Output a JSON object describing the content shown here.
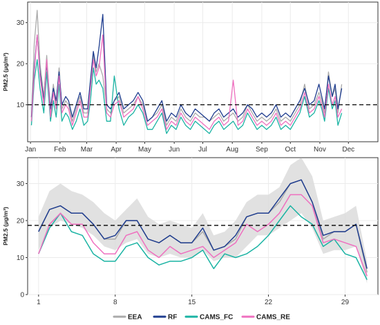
{
  "colors": {
    "EEA": "#aaaaaa",
    "RF": "#1f3d8f",
    "CAMS_FC": "#1ab3a3",
    "CAMS_RE": "#ef6fbf",
    "band": "#dcdcdc",
    "threshold": "#000000"
  },
  "legend": {
    "items": [
      {
        "key": "EEA",
        "label": "EEA"
      },
      {
        "key": "RF",
        "label": "RF"
      },
      {
        "key": "CAMS_FC",
        "label": "CAMS_FC"
      },
      {
        "key": "CAMS_RE",
        "label": "CAMS_RE"
      }
    ]
  },
  "chart_data": [
    {
      "type": "line",
      "ylabel": "PM2.5 (μg/m³)",
      "xlabel": "",
      "title": "",
      "x_unit": "day of year",
      "xlim": [
        -3,
        365
      ],
      "ylim": [
        1,
        35
      ],
      "yticks": [
        10,
        20,
        30
      ],
      "month_ticks": [
        {
          "label": "Jan",
          "day": 0
        },
        {
          "label": "Feb",
          "day": 31
        },
        {
          "label": "Mar",
          "day": 59
        },
        {
          "label": "Apr",
          "day": 90
        },
        {
          "label": "May",
          "day": 120
        },
        {
          "label": "Jun",
          "day": 151
        },
        {
          "label": "Jul",
          "day": 181
        },
        {
          "label": "Aug",
          "day": 212
        },
        {
          "label": "Sep",
          "day": 243
        },
        {
          "label": "Oct",
          "day": 273
        },
        {
          "label": "Nov",
          "day": 304
        },
        {
          "label": "Dec",
          "day": 334
        }
      ],
      "threshold": 10,
      "threshold_style": "dashed",
      "grid": true,
      "legend": "bottom",
      "series": [
        {
          "key": "EEA",
          "x": [
            1,
            4,
            7,
            10,
            14,
            17,
            21,
            24,
            27,
            30,
            33,
            37,
            40,
            44,
            48,
            52,
            56,
            60,
            63,
            66,
            69,
            72,
            76,
            80,
            84,
            88,
            93,
            98,
            103,
            108,
            113,
            118,
            123,
            128,
            133,
            138,
            143,
            148,
            153,
            158,
            163,
            168,
            173,
            178,
            183,
            188,
            193,
            198,
            203,
            208,
            213,
            218,
            223,
            228,
            233,
            238,
            243,
            248,
            253,
            258,
            263,
            268,
            273,
            278,
            283,
            288,
            293,
            298,
            303,
            306,
            309,
            313,
            317,
            320,
            323,
            327
          ],
          "y": [
            7,
            25,
            33,
            20,
            12,
            22,
            8,
            15,
            10,
            19,
            9,
            11,
            10,
            6,
            9,
            12,
            8,
            8,
            15,
            22,
            18,
            20,
            17,
            9,
            8,
            11,
            12,
            8,
            9,
            10,
            12,
            10,
            6,
            7,
            8,
            10,
            5,
            7,
            6,
            9,
            7,
            6,
            8,
            7,
            7,
            6,
            7,
            8,
            6,
            7,
            8,
            6,
            7,
            10,
            8,
            6,
            7,
            6,
            7,
            9,
            6,
            7,
            6,
            8,
            10,
            15,
            9,
            10,
            13,
            11,
            8,
            18,
            12,
            14,
            8,
            15
          ]
        },
        {
          "key": "RF",
          "x": [
            1,
            4,
            7,
            10,
            14,
            17,
            21,
            24,
            27,
            30,
            33,
            37,
            40,
            44,
            48,
            52,
            56,
            60,
            63,
            66,
            69,
            72,
            76,
            80,
            84,
            88,
            93,
            98,
            103,
            108,
            113,
            118,
            123,
            128,
            133,
            138,
            143,
            148,
            153,
            158,
            163,
            168,
            173,
            178,
            183,
            188,
            193,
            198,
            203,
            208,
            213,
            218,
            223,
            228,
            233,
            238,
            243,
            248,
            253,
            258,
            263,
            268,
            273,
            278,
            283,
            288,
            293,
            298,
            303,
            306,
            309,
            313,
            317,
            320,
            323,
            327
          ],
          "y": [
            7,
            19,
            27,
            18,
            11,
            20,
            9,
            14,
            11,
            18,
            10,
            12,
            11,
            7,
            10,
            13,
            9,
            9,
            16,
            23,
            19,
            24,
            32,
            10,
            9,
            11,
            13,
            9,
            10,
            11,
            13,
            11,
            6,
            7,
            9,
            11,
            6,
            8,
            7,
            10,
            8,
            7,
            9,
            8,
            7,
            6,
            8,
            9,
            7,
            8,
            9,
            7,
            8,
            10,
            9,
            7,
            8,
            7,
            8,
            10,
            7,
            8,
            7,
            9,
            11,
            14,
            10,
            11,
            15,
            12,
            9,
            17,
            12,
            15,
            9,
            14
          ]
        },
        {
          "key": "CAMS_FC",
          "x": [
            1,
            4,
            7,
            10,
            14,
            17,
            21,
            24,
            27,
            30,
            33,
            37,
            40,
            44,
            48,
            52,
            56,
            60,
            63,
            66,
            69,
            72,
            76,
            80,
            84,
            88,
            93,
            98,
            103,
            108,
            113,
            118,
            123,
            128,
            133,
            138,
            143,
            148,
            153,
            158,
            163,
            168,
            173,
            178,
            183,
            188,
            193,
            198,
            203,
            208,
            213,
            218,
            223,
            228,
            233,
            238,
            243,
            248,
            253,
            258,
            263,
            268,
            273,
            278,
            283,
            288,
            293,
            298,
            303,
            306,
            309,
            313,
            317,
            320,
            323,
            327
          ],
          "y": [
            5,
            16,
            21,
            14,
            8,
            18,
            6,
            11,
            7,
            15,
            6,
            8,
            7,
            4,
            6,
            9,
            5,
            6,
            11,
            19,
            15,
            16,
            14,
            6,
            6,
            17,
            9,
            5,
            7,
            8,
            10,
            8,
            4,
            4,
            6,
            8,
            3,
            5,
            4,
            7,
            5,
            4,
            6,
            5,
            4,
            3,
            5,
            6,
            4,
            5,
            6,
            4,
            5,
            8,
            6,
            4,
            5,
            4,
            5,
            7,
            4,
            5,
            4,
            6,
            8,
            12,
            7,
            8,
            11,
            9,
            6,
            14,
            9,
            11,
            5,
            8
          ]
        },
        {
          "key": "CAMS_RE",
          "x": [
            1,
            4,
            7,
            10,
            14,
            17,
            21,
            24,
            27,
            30,
            33,
            37,
            40,
            44,
            48,
            52,
            56,
            60,
            63,
            66,
            69,
            72,
            76,
            80,
            84,
            88,
            93,
            98,
            103,
            108,
            113,
            118,
            123,
            128,
            133,
            138,
            143,
            148,
            153,
            158,
            163,
            168,
            173,
            178,
            183,
            188,
            193,
            198,
            203,
            208,
            213,
            218,
            223,
            228,
            233,
            238,
            243,
            248,
            253,
            258,
            263,
            268,
            273,
            278,
            283,
            288,
            293,
            298,
            303,
            306,
            309,
            313,
            317,
            320,
            323,
            327
          ],
          "y": [
            6,
            18,
            27,
            17,
            10,
            21,
            7,
            13,
            9,
            17,
            8,
            10,
            9,
            5,
            8,
            11,
            7,
            7,
            14,
            21,
            17,
            19,
            27,
            8,
            7,
            10,
            11,
            7,
            8,
            9,
            12,
            9,
            5,
            6,
            7,
            9,
            4,
            6,
            5,
            8,
            6,
            5,
            7,
            6,
            5,
            4,
            6,
            7,
            5,
            6,
            16,
            5,
            6,
            9,
            7,
            5,
            6,
            5,
            6,
            8,
            5,
            6,
            5,
            7,
            9,
            13,
            8,
            9,
            12,
            10,
            7,
            15,
            10,
            12,
            7,
            9
          ]
        }
      ]
    },
    {
      "type": "line",
      "ylabel": "PM2.5 (μg/m³)",
      "xlabel": "",
      "title": "",
      "xlim": [
        0,
        32
      ],
      "ylim": [
        0,
        37
      ],
      "xticks": [
        1,
        8,
        15,
        22,
        29
      ],
      "yticks": [
        0,
        10,
        20,
        30
      ],
      "threshold": 18.7,
      "threshold_style": "dashed",
      "grid": true,
      "legend": "bottom",
      "x": [
        1,
        2,
        3,
        4,
        5,
        6,
        7,
        8,
        9,
        10,
        11,
        12,
        13,
        14,
        15,
        16,
        17,
        18,
        19,
        20,
        21,
        22,
        23,
        24,
        25,
        26,
        27,
        28,
        29,
        30,
        31
      ],
      "band": {
        "key": "EEA",
        "lower": [
          12,
          18,
          20,
          19,
          18,
          16,
          13,
          12,
          14,
          15,
          11,
          10,
          11,
          10,
          10,
          12,
          9,
          10,
          10,
          13,
          16,
          16,
          18,
          20,
          22,
          18,
          11,
          12,
          12,
          13,
          3
        ],
        "upper": [
          21,
          28,
          30,
          28,
          27,
          25,
          22,
          20,
          23,
          26,
          21,
          19,
          20,
          19,
          18,
          22,
          16,
          17,
          20,
          25,
          27,
          27,
          29,
          35,
          37,
          32,
          20,
          21,
          22,
          24,
          9
        ]
      },
      "series": [
        {
          "key": "EEA",
          "values": [
            17,
            23,
            24,
            22,
            22,
            19,
            15,
            15,
            20,
            20,
            15,
            14,
            16,
            14,
            14,
            17,
            12,
            13,
            15,
            21,
            22,
            22,
            25,
            30,
            31,
            25,
            15,
            17,
            17,
            19,
            6
          ]
        },
        {
          "key": "RF",
          "values": [
            17,
            23,
            24,
            22,
            22,
            19,
            15,
            16,
            20,
            20,
            15,
            14,
            16,
            14,
            14,
            18,
            12,
            13,
            16,
            21,
            22,
            22,
            26,
            30,
            31,
            25,
            16,
            17,
            17,
            19,
            7
          ]
        },
        {
          "key": "CAMS_FC",
          "values": [
            11,
            18,
            22,
            17,
            16,
            11,
            9,
            9,
            13,
            14,
            10,
            8,
            9,
            9,
            10,
            12,
            7,
            11,
            10,
            11,
            13,
            16,
            20,
            24,
            21,
            19,
            13,
            15,
            11,
            10,
            4
          ]
        },
        {
          "key": "CAMS_RE",
          "values": [
            11,
            19,
            22,
            19,
            19,
            14,
            11,
            11,
            16,
            17,
            12,
            10,
            13,
            11,
            12,
            13,
            10,
            12,
            14,
            19,
            17,
            19,
            22,
            27,
            27,
            24,
            14,
            15,
            14,
            13,
            5
          ]
        }
      ]
    }
  ]
}
